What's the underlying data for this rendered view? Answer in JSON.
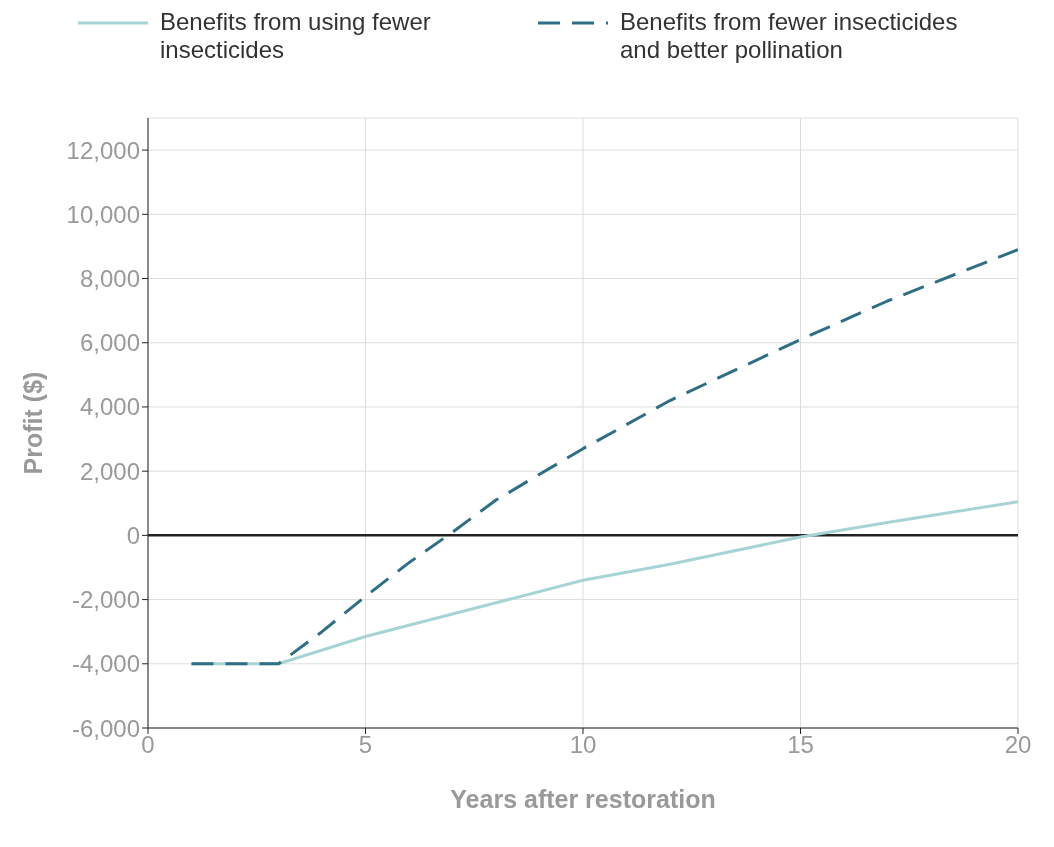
{
  "chart_data": {
    "type": "line",
    "xlabel": "Years after restoration",
    "ylabel": "Profit ($)",
    "x": [
      1,
      3,
      4,
      5,
      6,
      7,
      8,
      10,
      12,
      15,
      17,
      20
    ],
    "series": [
      {
        "name": "Benefits from using fewer insecticides",
        "color": "#a6d4d4",
        "line_style": "solid",
        "x": [
          1,
          3,
          5,
          8,
          10,
          12,
          15,
          17,
          20
        ],
        "values": [
          -4000,
          -4000,
          -3150,
          -2100,
          -1400,
          -900,
          -50,
          400,
          1050
        ]
      },
      {
        "name": "Benefits from fewer insecticides and better pollination",
        "color": "#2e6f86",
        "line_style": "dashed",
        "values": [
          -4000,
          -4000,
          -3000,
          -1900,
          -850,
          100,
          1100,
          2700,
          4200,
          6100,
          7300,
          8900
        ]
      }
    ],
    "xlim": [
      0,
      20
    ],
    "xticks": [
      0,
      5,
      10,
      15,
      20
    ],
    "ylim": [
      -6000,
      13000
    ],
    "yticks": [
      {
        "value": -6000,
        "label": "-6,000"
      },
      {
        "value": -4000,
        "label": "-4,000"
      },
      {
        "value": -2000,
        "label": "-2,000"
      },
      0,
      {
        "value": 2000,
        "label": "2,000"
      },
      {
        "value": 4000,
        "label": "4,000"
      },
      {
        "value": 6000,
        "label": "6,000"
      },
      {
        "value": 8000,
        "label": "8,000"
      },
      {
        "value": 10000,
        "label": "10,000"
      },
      {
        "value": 12000,
        "label": "12,000"
      }
    ],
    "grid": true,
    "legend": "top",
    "marker": "none",
    "ref_lines": [
      {
        "axis": "y",
        "value": 0,
        "color": "#222222",
        "line_style": "solid"
      }
    ]
  }
}
